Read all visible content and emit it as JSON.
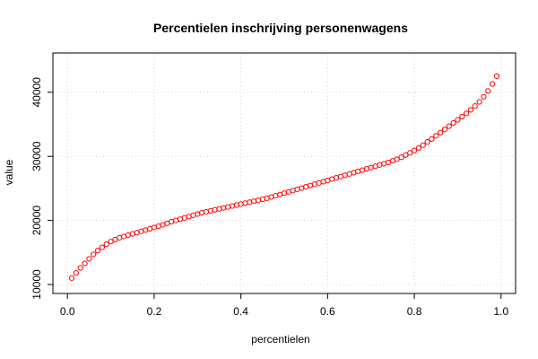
{
  "chart_data": {
    "type": "scatter",
    "title": "Percentielen inschrijving personenwagens",
    "xlabel": "percentielen",
    "ylabel": "value",
    "xlim": [
      0,
      1
    ],
    "ylim": [
      10000,
      43500
    ],
    "xticks": [
      0.0,
      0.2,
      0.4,
      0.6,
      0.8,
      1.0
    ],
    "xtick_labels": [
      "0.0",
      "0.2",
      "0.4",
      "0.6",
      "0.8",
      "1.0"
    ],
    "yticks": [
      10000,
      20000,
      30000,
      40000
    ],
    "ytick_labels": [
      "10000",
      "20000",
      "30000",
      "40000"
    ],
    "grid": true,
    "marker_color": "#ff0000",
    "x": [
      0.01,
      0.02,
      0.03,
      0.04,
      0.05,
      0.06,
      0.07,
      0.08,
      0.09,
      0.1,
      0.11,
      0.12,
      0.13,
      0.14,
      0.15,
      0.16,
      0.17,
      0.18,
      0.19,
      0.2,
      0.21,
      0.22,
      0.23,
      0.24,
      0.25,
      0.26,
      0.27,
      0.28,
      0.29,
      0.3,
      0.31,
      0.32,
      0.33,
      0.34,
      0.35,
      0.36,
      0.37,
      0.38,
      0.39,
      0.4,
      0.41,
      0.42,
      0.43,
      0.44,
      0.45,
      0.46,
      0.47,
      0.48,
      0.49,
      0.5,
      0.51,
      0.52,
      0.53,
      0.54,
      0.55,
      0.56,
      0.57,
      0.58,
      0.59,
      0.6,
      0.61,
      0.62,
      0.63,
      0.64,
      0.65,
      0.66,
      0.67,
      0.68,
      0.69,
      0.7,
      0.71,
      0.72,
      0.73,
      0.74,
      0.75,
      0.76,
      0.77,
      0.78,
      0.79,
      0.8,
      0.81,
      0.82,
      0.83,
      0.84,
      0.85,
      0.86,
      0.87,
      0.88,
      0.89,
      0.9,
      0.91,
      0.92,
      0.93,
      0.94,
      0.95,
      0.96,
      0.97,
      0.98,
      0.99
    ],
    "y": [
      11000,
      11800,
      12600,
      13300,
      14000,
      14700,
      15300,
      15800,
      16300,
      16700,
      17000,
      17300,
      17500,
      17700,
      17900,
      18100,
      18300,
      18500,
      18700,
      18900,
      19100,
      19300,
      19550,
      19800,
      20000,
      20200,
      20400,
      20600,
      20800,
      21000,
      21200,
      21350,
      21500,
      21650,
      21800,
      21950,
      22100,
      22250,
      22400,
      22550,
      22700,
      22850,
      23000,
      23150,
      23300,
      23450,
      23650,
      23850,
      24050,
      24250,
      24450,
      24650,
      24850,
      25050,
      25250,
      25450,
      25650,
      25850,
      26050,
      26250,
      26450,
      26650,
      26850,
      27050,
      27250,
      27450,
      27650,
      27850,
      28050,
      28250,
      28450,
      28650,
      28850,
      29050,
      29300,
      29550,
      29850,
      30200,
      30550,
      30900,
      31300,
      31750,
      32250,
      32700,
      33200,
      33700,
      34200,
      34700,
      35200,
      35700,
      36200,
      36700,
      37250,
      37850,
      38500,
      39300,
      40200,
      41300,
      42500
    ]
  }
}
